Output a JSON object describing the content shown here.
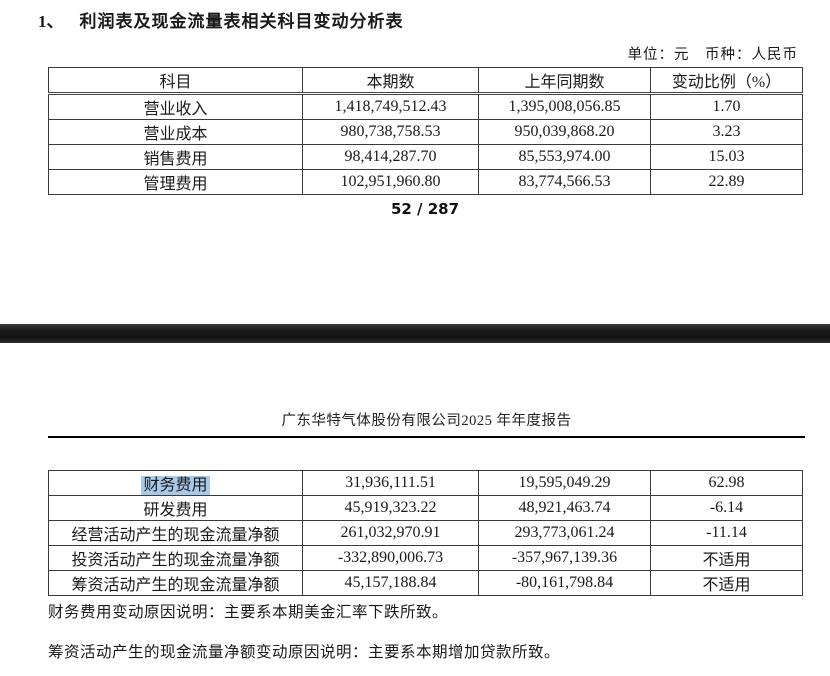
{
  "page1": {
    "title_number": "1、",
    "title": "利润表及现金流量表相关科目变动分析表",
    "unit_line": "单位：元　币种：人民币",
    "table": {
      "headers": [
        "科目",
        "本期数",
        "上年同期数",
        "变动比例（%）"
      ],
      "rows": [
        [
          "营业收入",
          "1,418,749,512.43",
          "1,395,008,056.85",
          "1.70"
        ],
        [
          "营业成本",
          "980,738,758.53",
          "950,039,868.20",
          "3.23"
        ],
        [
          "销售费用",
          "98,414,287.70",
          "85,553,974.00",
          "15.03"
        ],
        [
          "管理费用",
          "102,951,960.80",
          "83,774,566.53",
          "22.89"
        ]
      ]
    },
    "page_footer": "52 / 287"
  },
  "page2": {
    "header": "广东华特气体股份有限公司2025 年年度报告",
    "table": {
      "rows": [
        [
          "财务费用",
          "31,936,111.51",
          "19,595,049.29",
          "62.98"
        ],
        [
          "研发费用",
          "45,919,323.22",
          "48,921,463.74",
          "-6.14"
        ],
        [
          "经营活动产生的现金流量净额",
          "261,032,970.91",
          "293,773,061.24",
          "-11.14"
        ],
        [
          "投资活动产生的现金流量净额",
          "-332,890,006.73",
          "-357,967,139.36",
          "不适用"
        ],
        [
          "筹资活动产生的现金流量净额",
          "45,157,188.84",
          "-80,161,798.84",
          "不适用"
        ]
      ]
    },
    "notes": [
      "财务费用变动原因说明：主要系本期美金汇率下跌所致。",
      "筹资活动产生的现金流量净额变动原因说明：主要系本期增加贷款所致。"
    ]
  },
  "selection": {
    "tbody": "tbody2",
    "row": 0,
    "col": 0,
    "color": "#a9c9e9"
  }
}
